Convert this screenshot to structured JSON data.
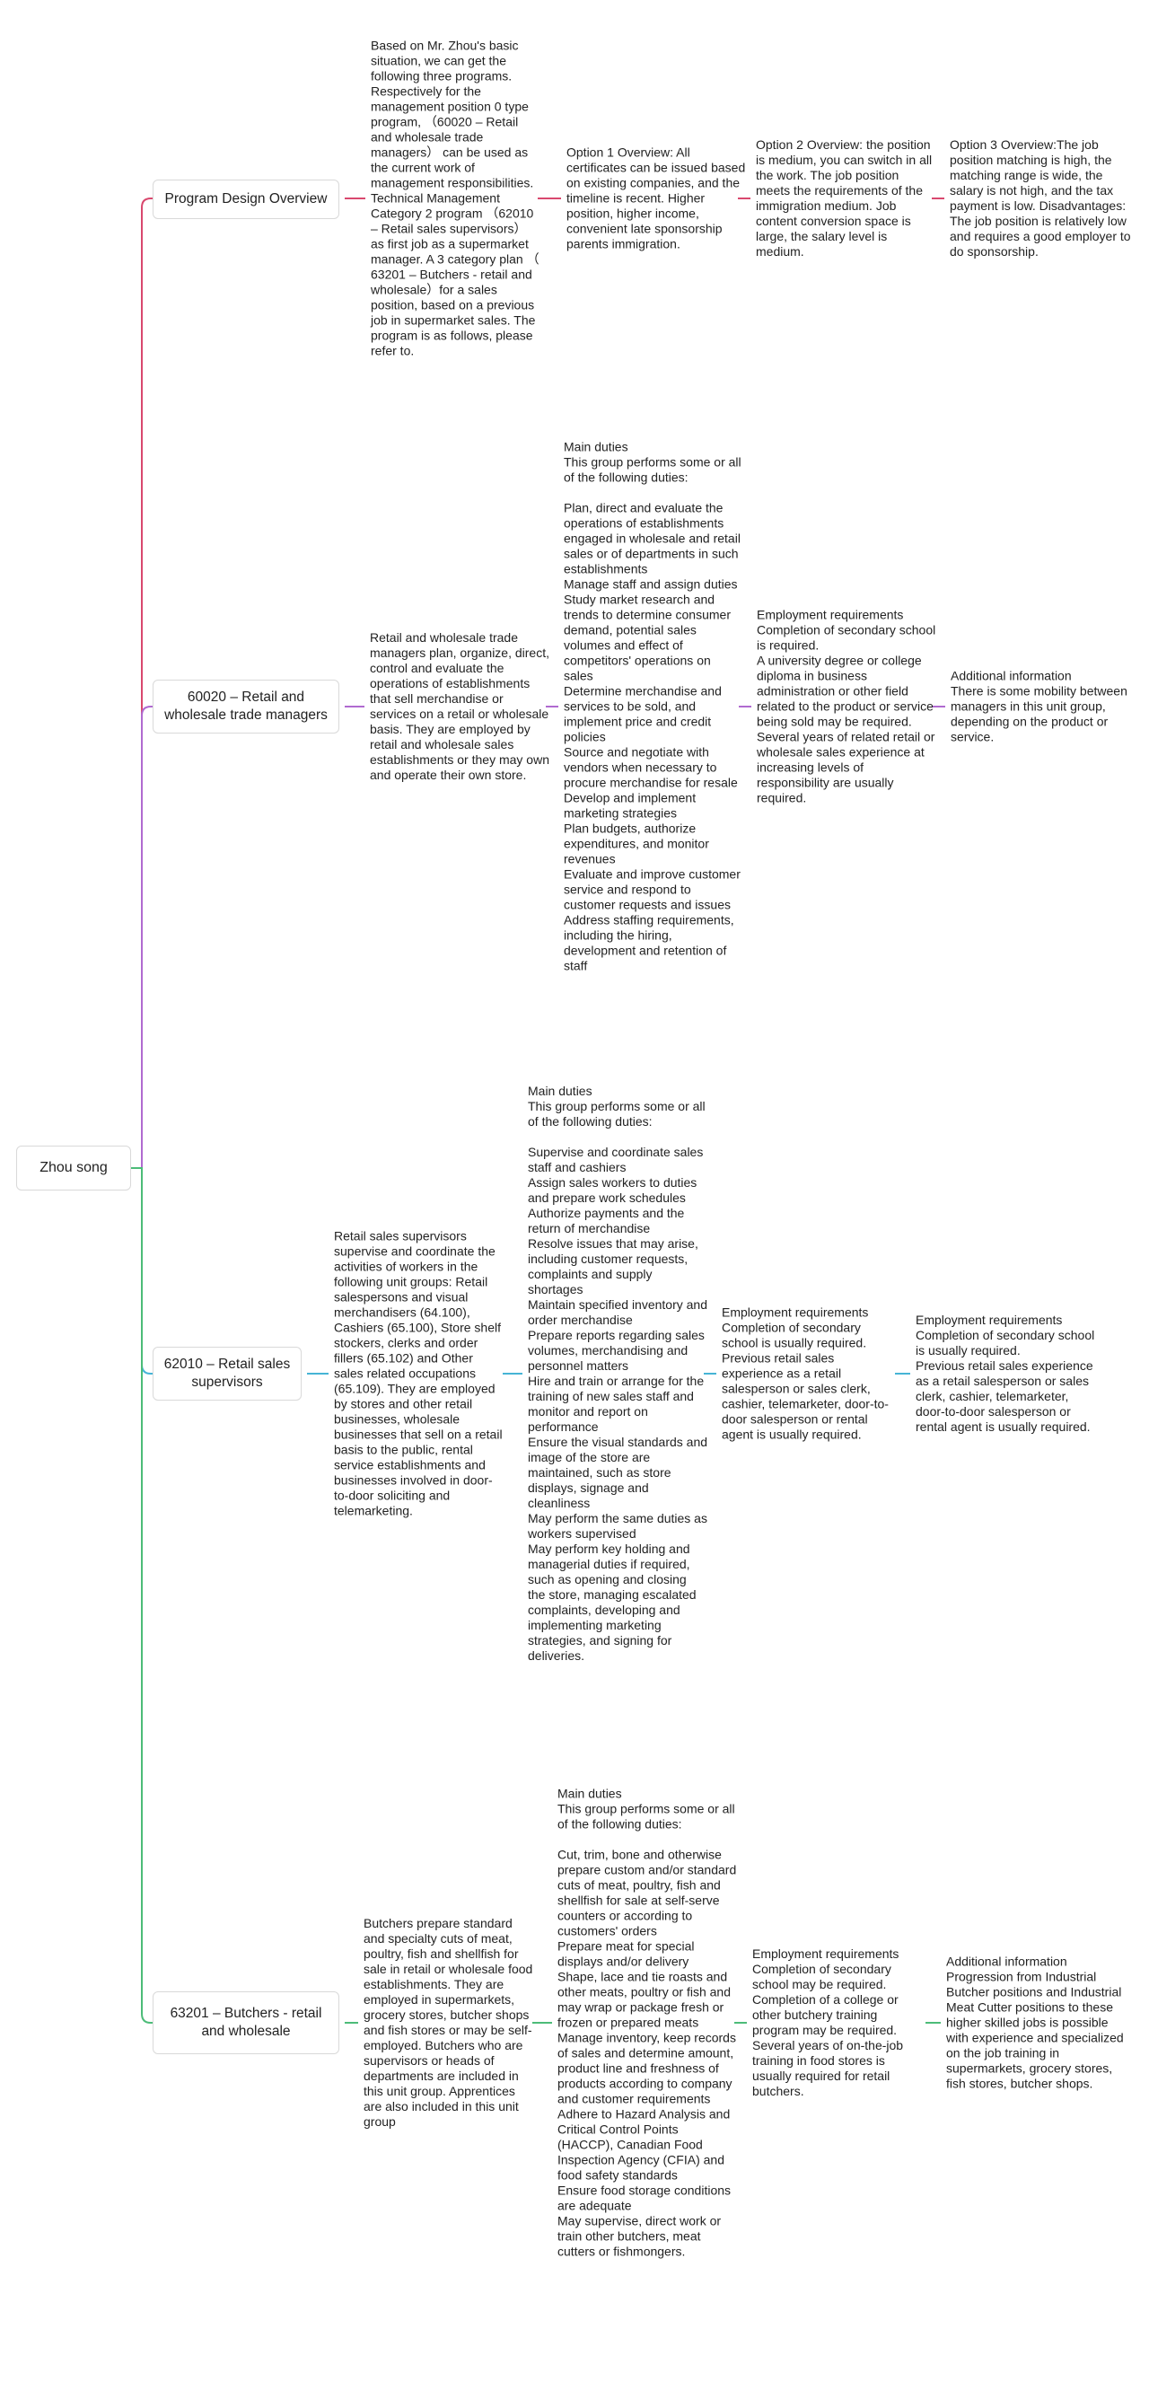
{
  "root": {
    "label": "Zhou song"
  },
  "branches": [
    {
      "label": "Program Design Overview",
      "color": "#d9486e",
      "nodes": [
        "Based on Mr. Zhou's basic situation, we can get the following three programs. Respectively for the management position 0 type program, （60020 – Retail and wholesale trade managers） can be used as the current work of management responsibilities. Technical Management Category 2 program （62010 – Retail sales supervisors）as first job as a supermarket manager. A 3 category plan （ 63201 – Butchers - retail and wholesale）for a sales position, based on a previous job in supermarket sales. The program is as follows, please refer to.",
        "Option 1 Overview: All certificates can be issued based on existing companies, and the timeline is recent. Higher position, higher income, convenient late sponsorship parents immigration.",
        "Option 2 Overview: the position is medium, you can switch in all the work. The job position meets the requirements of the immigration medium. Job content conversion space is large, the salary level is medium.",
        "Option 3 Overview:The job position matching is high, the matching range is wide, the salary is not high, and the tax payment is low. Disadvantages: The job position is relatively low and requires a good employer to do sponsorship."
      ]
    },
    {
      "label": "60020 – Retail and wholesale trade managers",
      "color": "#b06ad0",
      "nodes": [
        "Retail and wholesale trade managers plan, organize, direct, control and evaluate the operations of establishments that sell merchandise or services on a retail or wholesale basis. They are employed by retail and wholesale sales establishments or they may own and operate their own store.",
        "Main duties\nThis group performs some or all of the following duties:\n\nPlan, direct and evaluate the operations of establishments engaged in wholesale and retail sales or of departments in such establishments\nManage staff and assign duties\nStudy market research and trends to determine consumer demand, potential sales volumes and effect of competitors' operations on sales\nDetermine merchandise and services to be sold, and implement price and credit policies\nSource and negotiate with vendors when necessary to procure merchandise for resale\nDevelop and implement marketing strategies\nPlan budgets, authorize expenditures, and monitor revenues\nEvaluate and improve customer service and respond to customer requests and issues\nAddress staffing requirements, including the hiring, development and retention of staff",
        "Employment requirements\nCompletion of secondary school is required.\nA university degree or college diploma in business administration or other field related to the product or service being sold may be required.\nSeveral years of related retail or wholesale sales experience at increasing levels of responsibility are usually required.",
        "Additional information\nThere is some mobility between managers in this unit group, depending on the product or service."
      ]
    },
    {
      "label": "62010 – Retail sales supervisors",
      "color": "#46b4d6",
      "nodes": [
        "Retail sales supervisors supervise and coordinate the activities of workers in the following unit groups: Retail salespersons and visual merchandisers (64.100), Cashiers (65.100), Store shelf stockers, clerks and order fillers (65.102) and Other sales related occupations (65.109). They are employed by stores and other retail businesses, wholesale businesses that sell on a retail basis to the public, rental service establishments and businesses involved in door-to-door soliciting and telemarketing.",
        "Main duties\nThis group performs some or all of the following duties:\n\nSupervise and coordinate sales staff and cashiers\nAssign sales workers to duties and prepare work schedules\nAuthorize payments and the return of merchandise\nResolve issues that may arise, including customer requests, complaints and supply shortages\nMaintain specified inventory and order merchandise\nPrepare reports regarding sales volumes, merchandising and personnel matters\nHire and train or arrange for the training of new sales staff and monitor and report on performance\nEnsure the visual standards and image of the store are maintained, such as store displays, signage and cleanliness\nMay perform the same duties as workers supervised\nMay perform key holding and managerial duties if required, such as opening and closing the store, managing escalated complaints, developing and implementing marketing strategies, and signing for deliveries.",
        "Employment requirements\nCompletion of secondary school is usually required.\nPrevious retail sales experience as a retail salesperson or sales clerk, cashier, telemarketer, door-to-door salesperson or rental agent is usually required.",
        "Employment requirements\nCompletion of secondary school is usually required.\nPrevious retail sales experience as a retail salesperson or sales clerk, cashier, telemarketer, door-to-door salesperson or rental agent is usually required."
      ]
    },
    {
      "label": "63201 – Butchers - retail and wholesale",
      "color": "#4cbc78",
      "nodes": [
        "Butchers prepare standard and specialty cuts of meat, poultry, fish and shellfish for sale in retail or wholesale food establishments. They are employed in supermarkets, grocery stores, butcher shops and fish stores or may be self-employed. Butchers who are supervisors or heads of departments are included in this unit group. Apprentices are also included in this unit group",
        "Main duties\nThis group performs some or all of the following duties:\n\nCut, trim, bone and otherwise prepare custom and/or standard cuts of meat, poultry, fish and shellfish for sale at self-serve counters or according to customers' orders\nPrepare meat for special displays and/or delivery\nShape, lace and tie roasts and other meats, poultry or fish and may wrap or package fresh or frozen or prepared meats\nManage inventory, keep records of sales and determine amount, product line and freshness of products according to company and customer requirements\nAdhere to Hazard Analysis and Critical Control Points (HACCP), Canadian Food Inspection Agency (CFIA) and food safety standards\nEnsure food storage conditions are adequate\nMay supervise, direct work or train other butchers, meat cutters or fishmongers.",
        "Employment requirements\nCompletion of secondary school may be required.\nCompletion of a college or other butchery training program may be required.\nSeveral years of on-the-job training in food stores is usually required for retail butchers.",
        "Additional information\nProgression from Industrial Butcher positions and Industrial Meat Cutter positions to these higher skilled jobs is possible with experience and specialized on the job training in supermarkets, grocery stores, fish stores, butcher shops."
      ]
    }
  ]
}
